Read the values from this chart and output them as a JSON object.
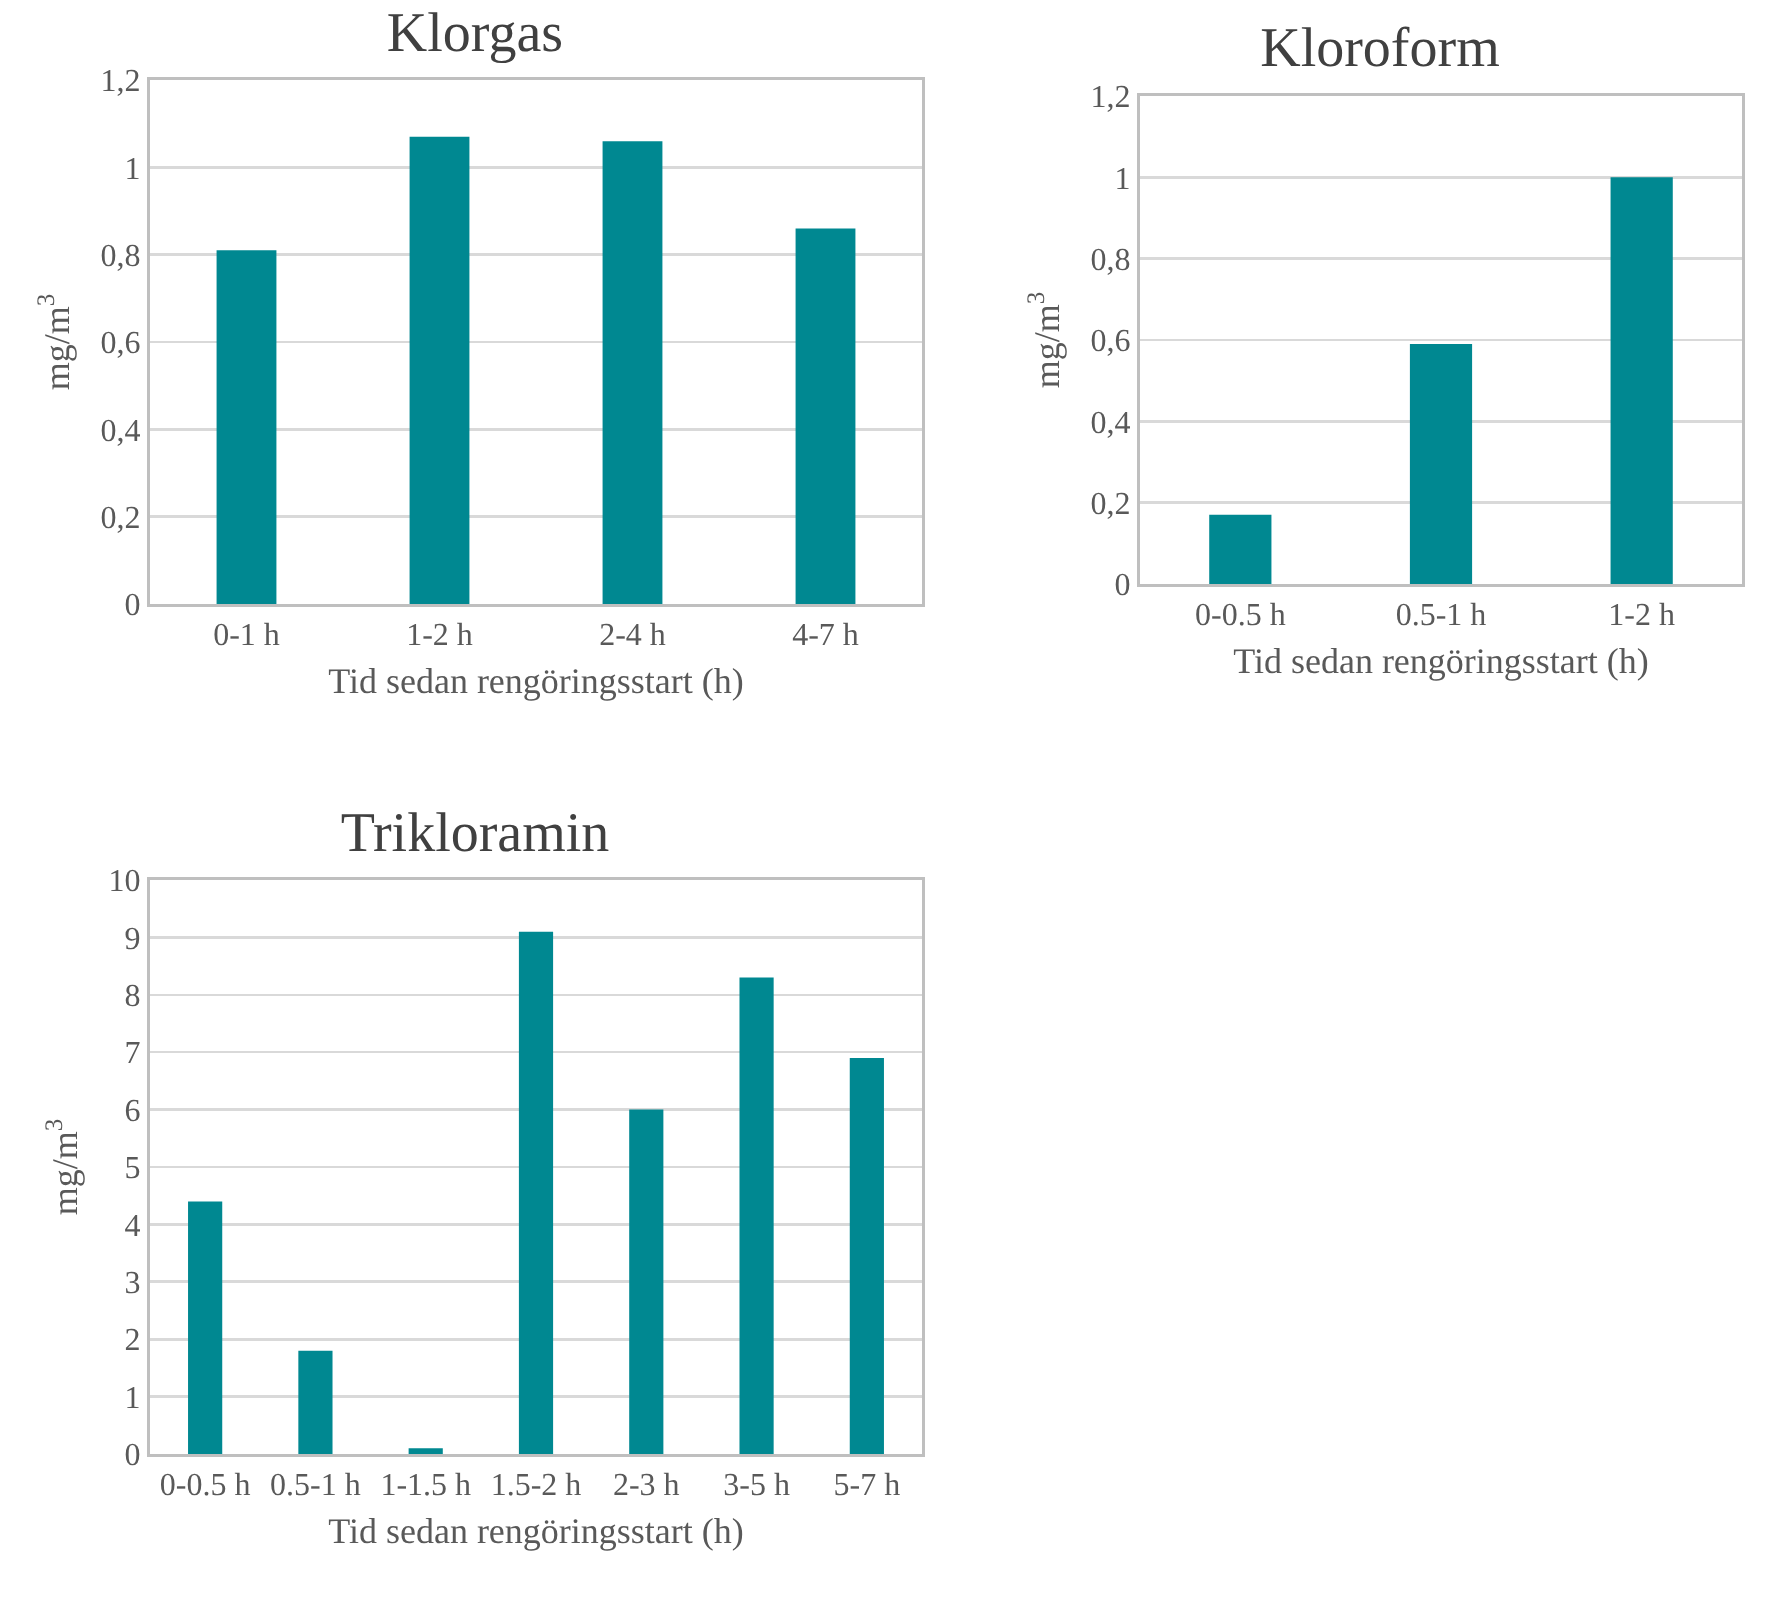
{
  "chart_data": [
    {
      "type": "bar",
      "title": "Klorgas",
      "xlabel": "Tid sedan rengöringsstart (h)",
      "ylabel": "mg/m$^{3}$",
      "categories": [
        "0-1 h",
        "1-2 h",
        "2-4 h",
        "4-7 h"
      ],
      "values": [
        0.81,
        1.07,
        1.06,
        0.86
      ],
      "color": "#008891",
      "ylim": [
        0,
        1.2
      ],
      "yticks": [
        0,
        {
          "value": 0.2,
          "label": "0,2"
        },
        {
          "value": 0.4,
          "label": "0,4"
        },
        {
          "value": 0.6,
          "label": "0,6"
        },
        {
          "value": 0.8,
          "label": "0,8"
        },
        1,
        {
          "value": 1.2,
          "label": "1,2"
        }
      ],
      "grid": "y"
    },
    {
      "type": "bar",
      "title": "Kloroform",
      "xlabel": "Tid sedan rengöringsstart (h)",
      "ylabel": "mg/m$^{3}$",
      "categories": [
        "0-0.5 h",
        "0.5-1 h",
        "1-2 h"
      ],
      "values": [
        0.17,
        0.59,
        1.0
      ],
      "color": "#008891",
      "ylim": [
        0,
        1.2
      ],
      "yticks": [
        0,
        {
          "value": 0.2,
          "label": "0,2"
        },
        {
          "value": 0.4,
          "label": "0,4"
        },
        {
          "value": 0.6,
          "label": "0,6"
        },
        {
          "value": 0.8,
          "label": "0,8"
        },
        1,
        {
          "value": 1.2,
          "label": "1,2"
        }
      ],
      "grid": "y"
    },
    {
      "type": "bar",
      "title": "Trikloramin",
      "xlabel": "Tid sedan rengöringsstart (h)",
      "ylabel": "mg/m$^{3}$",
      "categories": [
        "0-0.5 h",
        "0.5-1 h",
        "1-1.5 h",
        "1.5-2 h",
        "2-3 h",
        "3-5 h",
        "5-7 h"
      ],
      "values": [
        4.4,
        1.8,
        0.1,
        9.1,
        6.0,
        8.3,
        6.9
      ],
      "color": "#008891",
      "ylim": [
        0,
        10
      ],
      "yticks": [
        0,
        1,
        2,
        3,
        4,
        5,
        6,
        7,
        8,
        9,
        10
      ],
      "grid": "y"
    }
  ]
}
